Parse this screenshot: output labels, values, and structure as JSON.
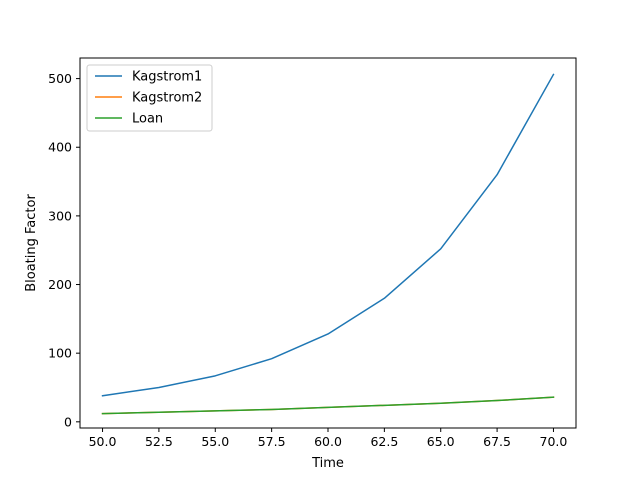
{
  "chart_data": {
    "type": "line",
    "title": "",
    "xlabel": "Time",
    "ylabel": "Bloating Factor",
    "xlim": [
      49.0,
      71.0
    ],
    "ylim": [
      -9.0,
      530.0
    ],
    "xticks": [
      50.0,
      52.5,
      55.0,
      57.5,
      60.0,
      62.5,
      65.0,
      67.5,
      70.0
    ],
    "xtick_labels": [
      "50.0",
      "52.5",
      "55.0",
      "57.5",
      "60.0",
      "62.5",
      "65.0",
      "67.5",
      "70.0"
    ],
    "yticks": [
      0,
      100,
      200,
      300,
      400,
      500
    ],
    "ytick_labels": [
      "0",
      "100",
      "200",
      "300",
      "400",
      "500"
    ],
    "grid": false,
    "legend_position": "top-left",
    "x": [
      50.0,
      52.5,
      55.0,
      57.5,
      60.0,
      62.5,
      65.0,
      67.5,
      70.0
    ],
    "series": [
      {
        "name": "Kagstrom1",
        "color": "#1f77b4",
        "values": [
          38,
          50,
          67,
          92,
          128,
          180,
          252,
          360,
          506
        ]
      },
      {
        "name": "Kagstrom2",
        "color": "#ff7f0e",
        "values": [
          12,
          14,
          16,
          18,
          21,
          24,
          27,
          31,
          36
        ]
      },
      {
        "name": "Loan",
        "color": "#2ca02c",
        "values": [
          12,
          14,
          16,
          18,
          21,
          24,
          27,
          31,
          36
        ]
      }
    ]
  }
}
